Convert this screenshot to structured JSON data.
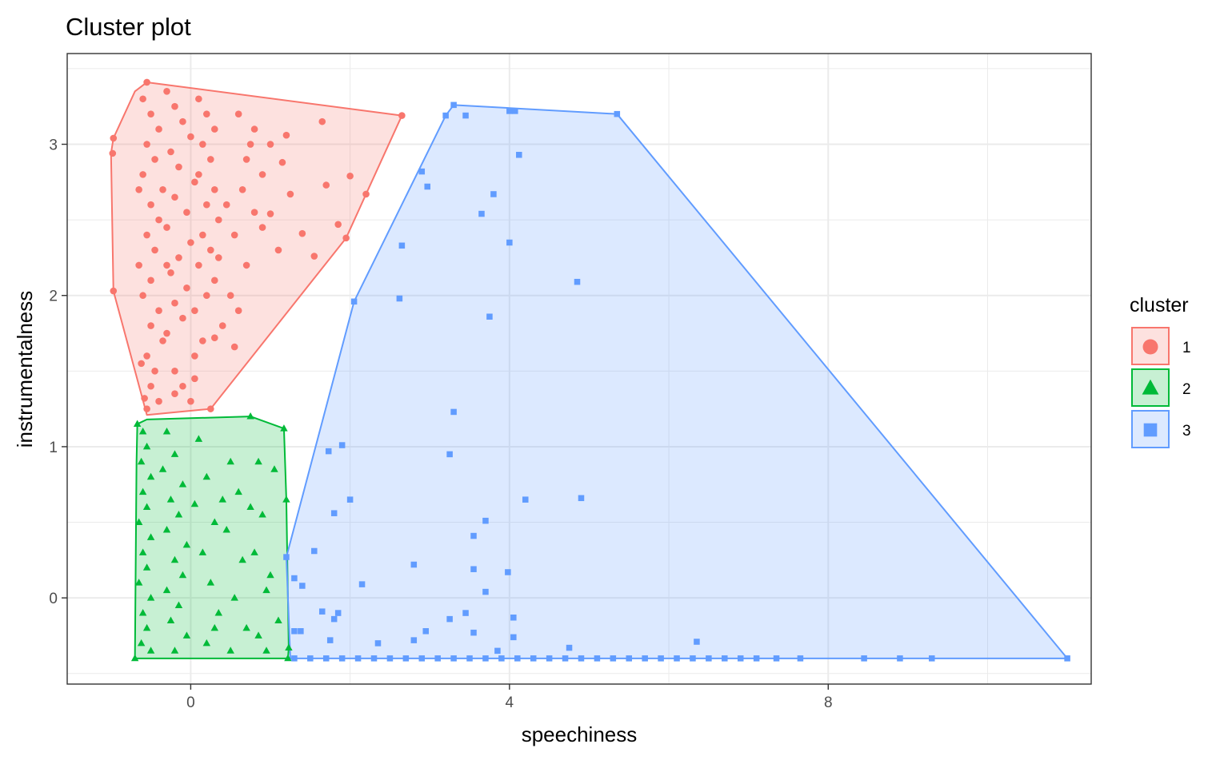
{
  "chart_data": {
    "type": "scatter",
    "title": "Cluster plot",
    "xlabel": "speechiness",
    "ylabel": "instrumentalness",
    "xlim": [
      -1.55,
      11.3
    ],
    "ylim": [
      -0.57,
      3.6
    ],
    "x_ticks": [
      0,
      4,
      8
    ],
    "x_tick_labels": [
      "0",
      "4",
      "8"
    ],
    "y_ticks": [
      0,
      1,
      2,
      3
    ],
    "y_tick_labels": [
      "0",
      "1",
      "2",
      "3"
    ],
    "grid": true,
    "legend": {
      "title": "cluster",
      "position": "right"
    },
    "series": [
      {
        "name": "1",
        "color": "#F8766D",
        "marker": "circle",
        "hull": [
          [
            -0.97,
            3.04
          ],
          [
            -0.7,
            3.35
          ],
          [
            -0.55,
            3.41
          ],
          [
            2.65,
            3.19
          ],
          [
            2.2,
            2.67
          ],
          [
            1.95,
            2.38
          ],
          [
            0.25,
            1.25
          ],
          [
            -0.55,
            1.21
          ],
          [
            -0.97,
            2.03
          ],
          [
            -1.0,
            2.94
          ]
        ],
        "points": [
          [
            -0.97,
            3.04
          ],
          [
            -0.98,
            2.94
          ],
          [
            -0.97,
            2.03
          ],
          [
            -0.55,
            3.41
          ],
          [
            2.65,
            3.19
          ],
          [
            2.2,
            2.67
          ],
          [
            1.95,
            2.38
          ],
          [
            0.25,
            1.25
          ],
          [
            -0.6,
            3.3
          ],
          [
            -0.5,
            3.2
          ],
          [
            -0.4,
            3.1
          ],
          [
            -0.55,
            3.0
          ],
          [
            -0.45,
            2.9
          ],
          [
            -0.6,
            2.8
          ],
          [
            -0.35,
            2.7
          ],
          [
            -0.5,
            2.6
          ],
          [
            -0.4,
            2.5
          ],
          [
            -0.55,
            2.4
          ],
          [
            -0.45,
            2.3
          ],
          [
            -0.3,
            2.2
          ],
          [
            -0.5,
            2.1
          ],
          [
            -0.6,
            2.0
          ],
          [
            -0.4,
            1.9
          ],
          [
            -0.5,
            1.8
          ],
          [
            -0.35,
            1.7
          ],
          [
            -0.55,
            1.6
          ],
          [
            -0.45,
            1.5
          ],
          [
            -0.5,
            1.4
          ],
          [
            -0.4,
            1.3
          ],
          [
            -0.55,
            1.25
          ],
          [
            -0.3,
            3.35
          ],
          [
            -0.2,
            3.25
          ],
          [
            -0.1,
            3.15
          ],
          [
            0.0,
            3.05
          ],
          [
            -0.25,
            2.95
          ],
          [
            -0.15,
            2.85
          ],
          [
            0.05,
            2.75
          ],
          [
            -0.2,
            2.65
          ],
          [
            -0.05,
            2.55
          ],
          [
            -0.3,
            2.45
          ],
          [
            0.0,
            2.35
          ],
          [
            -0.15,
            2.25
          ],
          [
            -0.25,
            2.15
          ],
          [
            -0.05,
            2.05
          ],
          [
            -0.2,
            1.95
          ],
          [
            -0.1,
            1.85
          ],
          [
            -0.3,
            1.75
          ],
          [
            0.05,
            1.6
          ],
          [
            -0.2,
            1.5
          ],
          [
            -0.1,
            1.4
          ],
          [
            0.1,
            3.3
          ],
          [
            0.2,
            3.2
          ],
          [
            0.3,
            3.1
          ],
          [
            0.15,
            3.0
          ],
          [
            0.25,
            2.9
          ],
          [
            0.1,
            2.8
          ],
          [
            0.3,
            2.7
          ],
          [
            0.2,
            2.6
          ],
          [
            0.35,
            2.5
          ],
          [
            0.15,
            2.4
          ],
          [
            0.25,
            2.3
          ],
          [
            0.1,
            2.2
          ],
          [
            0.3,
            2.1
          ],
          [
            0.2,
            2.0
          ],
          [
            0.05,
            1.9
          ],
          [
            0.15,
            1.7
          ],
          [
            0.3,
            1.72
          ],
          [
            0.6,
            3.2
          ],
          [
            0.8,
            3.1
          ],
          [
            1.0,
            3.0
          ],
          [
            0.7,
            2.9
          ],
          [
            0.9,
            2.8
          ],
          [
            0.65,
            2.7
          ],
          [
            0.8,
            2.55
          ],
          [
            0.55,
            2.4
          ],
          [
            0.7,
            2.2
          ],
          [
            0.5,
            2.0
          ],
          [
            0.6,
            1.9
          ],
          [
            0.4,
            1.8
          ],
          [
            0.55,
            1.66
          ],
          [
            1.2,
            3.06
          ],
          [
            1.15,
            2.88
          ],
          [
            1.0,
            2.54
          ],
          [
            1.25,
            2.67
          ],
          [
            1.4,
            2.41
          ],
          [
            1.65,
            3.15
          ],
          [
            1.7,
            2.73
          ],
          [
            1.55,
            2.26
          ],
          [
            1.85,
            2.47
          ],
          [
            2.0,
            2.79
          ],
          [
            1.1,
            2.3
          ],
          [
            0.9,
            2.45
          ],
          [
            0.45,
            2.6
          ],
          [
            0.35,
            2.25
          ],
          [
            0.75,
            3.0
          ],
          [
            -0.65,
            2.7
          ],
          [
            -0.65,
            2.2
          ],
          [
            -0.62,
            1.55
          ],
          [
            -0.58,
            1.32
          ],
          [
            0.0,
            1.3
          ],
          [
            -0.2,
            1.35
          ],
          [
            0.05,
            1.45
          ]
        ]
      },
      {
        "name": "2",
        "color": "#00BA38",
        "marker": "triangle",
        "hull": [
          [
            -0.67,
            1.15
          ],
          [
            -0.55,
            1.18
          ],
          [
            0.75,
            1.2
          ],
          [
            1.17,
            1.12
          ],
          [
            1.2,
            0.65
          ],
          [
            1.23,
            -0.33
          ],
          [
            1.22,
            -0.4
          ],
          [
            -0.7,
            -0.4
          ],
          [
            -0.68,
            0.9
          ]
        ],
        "points": [
          [
            0.75,
            1.2
          ],
          [
            1.17,
            1.12
          ],
          [
            1.2,
            0.65
          ],
          [
            1.23,
            -0.33
          ],
          [
            1.22,
            -0.4
          ],
          [
            -0.7,
            -0.4
          ],
          [
            -0.67,
            1.15
          ],
          [
            -0.6,
            1.1
          ],
          [
            -0.55,
            1.0
          ],
          [
            -0.62,
            0.9
          ],
          [
            -0.5,
            0.8
          ],
          [
            -0.6,
            0.7
          ],
          [
            -0.55,
            0.6
          ],
          [
            -0.65,
            0.5
          ],
          [
            -0.5,
            0.4
          ],
          [
            -0.6,
            0.3
          ],
          [
            -0.55,
            0.2
          ],
          [
            -0.65,
            0.1
          ],
          [
            -0.5,
            0.0
          ],
          [
            -0.6,
            -0.1
          ],
          [
            -0.55,
            -0.2
          ],
          [
            -0.62,
            -0.3
          ],
          [
            -0.5,
            -0.35
          ],
          [
            -0.3,
            1.1
          ],
          [
            -0.2,
            0.95
          ],
          [
            -0.35,
            0.85
          ],
          [
            -0.1,
            0.75
          ],
          [
            -0.25,
            0.65
          ],
          [
            -0.15,
            0.55
          ],
          [
            -0.3,
            0.45
          ],
          [
            -0.05,
            0.35
          ],
          [
            -0.2,
            0.25
          ],
          [
            -0.1,
            0.15
          ],
          [
            -0.3,
            0.05
          ],
          [
            -0.15,
            -0.05
          ],
          [
            -0.25,
            -0.15
          ],
          [
            -0.05,
            -0.25
          ],
          [
            -0.2,
            -0.35
          ],
          [
            0.1,
            1.05
          ],
          [
            0.2,
            0.8
          ],
          [
            0.05,
            0.62
          ],
          [
            0.3,
            0.5
          ],
          [
            0.15,
            0.3
          ],
          [
            0.25,
            0.1
          ],
          [
            0.35,
            -0.1
          ],
          [
            0.2,
            -0.3
          ],
          [
            0.5,
            0.9
          ],
          [
            0.6,
            0.7
          ],
          [
            0.45,
            0.45
          ],
          [
            0.65,
            0.25
          ],
          [
            0.55,
            0.0
          ],
          [
            0.7,
            -0.2
          ],
          [
            0.5,
            -0.35
          ],
          [
            0.85,
            0.9
          ],
          [
            0.9,
            0.55
          ],
          [
            0.8,
            0.3
          ],
          [
            0.95,
            0.05
          ],
          [
            0.85,
            -0.25
          ],
          [
            1.05,
            0.85
          ],
          [
            1.0,
            0.15
          ],
          [
            1.1,
            -0.15
          ],
          [
            0.4,
            0.65
          ],
          [
            0.3,
            -0.2
          ],
          [
            0.75,
            0.6
          ],
          [
            0.95,
            -0.35
          ]
        ]
      },
      {
        "name": "3",
        "color": "#619CFF",
        "marker": "square",
        "hull": [
          [
            1.2,
            0.27
          ],
          [
            2.05,
            1.96
          ],
          [
            3.2,
            3.19
          ],
          [
            3.3,
            3.26
          ],
          [
            5.35,
            3.2
          ],
          [
            11.0,
            -0.4
          ],
          [
            1.25,
            -0.4
          ]
        ],
        "points": [
          [
            1.2,
            0.27
          ],
          [
            2.05,
            1.96
          ],
          [
            3.2,
            3.19
          ],
          [
            3.3,
            3.26
          ],
          [
            3.45,
            3.19
          ],
          [
            4.0,
            3.22
          ],
          [
            4.07,
            3.22
          ],
          [
            5.35,
            3.2
          ],
          [
            4.12,
            2.93
          ],
          [
            2.9,
            2.82
          ],
          [
            2.97,
            2.72
          ],
          [
            3.8,
            2.67
          ],
          [
            3.65,
            2.54
          ],
          [
            2.65,
            2.33
          ],
          [
            4.0,
            2.35
          ],
          [
            4.85,
            2.09
          ],
          [
            2.62,
            1.98
          ],
          [
            3.75,
            1.86
          ],
          [
            3.3,
            1.23
          ],
          [
            1.9,
            1.01
          ],
          [
            1.73,
            0.97
          ],
          [
            3.25,
            0.95
          ],
          [
            2.0,
            0.65
          ],
          [
            4.2,
            0.65
          ],
          [
            4.9,
            0.66
          ],
          [
            1.8,
            0.56
          ],
          [
            3.7,
            0.51
          ],
          [
            3.55,
            0.41
          ],
          [
            1.55,
            0.31
          ],
          [
            2.8,
            0.22
          ],
          [
            3.55,
            0.19
          ],
          [
            3.98,
            0.17
          ],
          [
            1.3,
            0.13
          ],
          [
            1.4,
            0.08
          ],
          [
            2.15,
            0.09
          ],
          [
            3.7,
            0.04
          ],
          [
            1.65,
            -0.09
          ],
          [
            1.85,
            -0.1
          ],
          [
            1.8,
            -0.14
          ],
          [
            3.45,
            -0.1
          ],
          [
            3.25,
            -0.14
          ],
          [
            4.05,
            -0.13
          ],
          [
            1.3,
            -0.22
          ],
          [
            1.38,
            -0.22
          ],
          [
            1.75,
            -0.28
          ],
          [
            2.95,
            -0.22
          ],
          [
            3.55,
            -0.23
          ],
          [
            4.05,
            -0.26
          ],
          [
            2.35,
            -0.3
          ],
          [
            2.8,
            -0.28
          ],
          [
            3.85,
            -0.35
          ],
          [
            4.75,
            -0.33
          ],
          [
            6.35,
            -0.29
          ],
          [
            1.3,
            -0.4
          ],
          [
            1.5,
            -0.4
          ],
          [
            1.7,
            -0.4
          ],
          [
            1.9,
            -0.4
          ],
          [
            2.1,
            -0.4
          ],
          [
            2.3,
            -0.4
          ],
          [
            2.5,
            -0.4
          ],
          [
            2.7,
            -0.4
          ],
          [
            2.9,
            -0.4
          ],
          [
            3.1,
            -0.4
          ],
          [
            3.3,
            -0.4
          ],
          [
            3.5,
            -0.4
          ],
          [
            3.7,
            -0.4
          ],
          [
            3.9,
            -0.4
          ],
          [
            4.1,
            -0.4
          ],
          [
            4.3,
            -0.4
          ],
          [
            4.5,
            -0.4
          ],
          [
            4.7,
            -0.4
          ],
          [
            4.9,
            -0.4
          ],
          [
            5.1,
            -0.4
          ],
          [
            5.3,
            -0.4
          ],
          [
            5.5,
            -0.4
          ],
          [
            5.7,
            -0.4
          ],
          [
            5.9,
            -0.4
          ],
          [
            6.1,
            -0.4
          ],
          [
            6.3,
            -0.4
          ],
          [
            6.5,
            -0.4
          ],
          [
            6.7,
            -0.4
          ],
          [
            6.9,
            -0.4
          ],
          [
            7.1,
            -0.4
          ],
          [
            7.35,
            -0.4
          ],
          [
            7.65,
            -0.4
          ],
          [
            8.45,
            -0.4
          ],
          [
            8.9,
            -0.4
          ],
          [
            9.3,
            -0.4
          ],
          [
            11.0,
            -0.4
          ]
        ]
      }
    ]
  }
}
